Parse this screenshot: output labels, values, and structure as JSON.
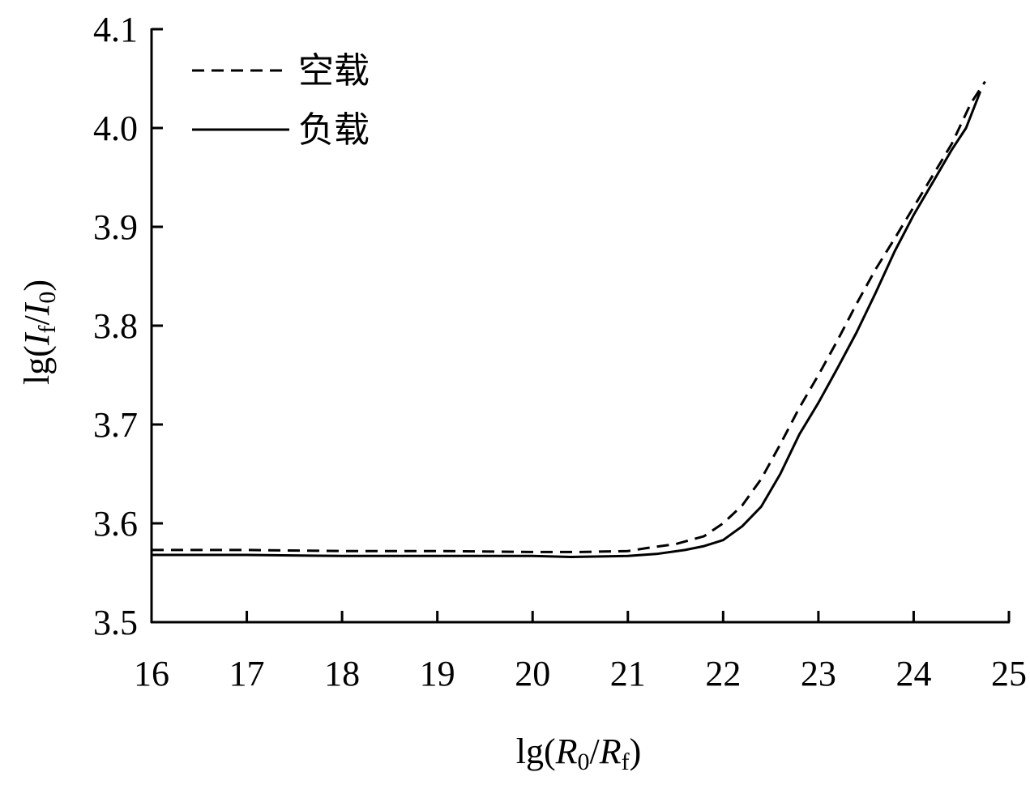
{
  "chart_data": {
    "type": "line",
    "title": "",
    "xlabel": {
      "prefix": "lg(",
      "num": "R",
      "num_sub": "0",
      "slash": "/",
      "den": "R",
      "den_sub": "f",
      "suffix": ")"
    },
    "ylabel": {
      "prefix": "lg(",
      "num": "I",
      "num_sub": "f",
      "slash": "/",
      "den": "I",
      "den_sub": "0",
      "suffix": ")"
    },
    "xlim": [
      16,
      25
    ],
    "ylim": [
      3.5,
      4.1
    ],
    "x_ticks": [
      "16",
      "17",
      "18",
      "19",
      "20",
      "21",
      "22",
      "23",
      "24",
      "25"
    ],
    "y_ticks": [
      "3.5",
      "3.6",
      "3.7",
      "3.8",
      "3.9",
      "4.0",
      "4.1"
    ],
    "grid": false,
    "legend_position": "top-left",
    "series": [
      {
        "name": "空载",
        "style": "dashed",
        "color": "#000000",
        "points": [
          [
            16.0,
            3.573
          ],
          [
            17.0,
            3.573
          ],
          [
            18.0,
            3.572
          ],
          [
            19.0,
            3.572
          ],
          [
            20.0,
            3.571
          ],
          [
            20.5,
            3.571
          ],
          [
            21.0,
            3.572
          ],
          [
            21.2,
            3.575
          ],
          [
            21.5,
            3.579
          ],
          [
            21.8,
            3.587
          ],
          [
            22.0,
            3.6
          ],
          [
            22.2,
            3.618
          ],
          [
            22.4,
            3.645
          ],
          [
            22.6,
            3.68
          ],
          [
            22.8,
            3.717
          ],
          [
            23.0,
            3.75
          ],
          [
            23.2,
            3.785
          ],
          [
            23.4,
            3.822
          ],
          [
            23.6,
            3.857
          ],
          [
            23.8,
            3.888
          ],
          [
            24.0,
            3.92
          ],
          [
            24.2,
            3.952
          ],
          [
            24.4,
            3.984
          ],
          [
            24.6,
            4.025
          ],
          [
            24.75,
            4.047
          ]
        ]
      },
      {
        "name": "负载",
        "style": "solid",
        "color": "#000000",
        "points": [
          [
            16.0,
            3.568
          ],
          [
            17.0,
            3.568
          ],
          [
            18.0,
            3.567
          ],
          [
            19.0,
            3.567
          ],
          [
            20.0,
            3.567
          ],
          [
            20.4,
            3.566
          ],
          [
            21.0,
            3.567
          ],
          [
            21.3,
            3.569
          ],
          [
            21.6,
            3.573
          ],
          [
            21.8,
            3.577
          ],
          [
            22.0,
            3.583
          ],
          [
            22.2,
            3.597
          ],
          [
            22.4,
            3.617
          ],
          [
            22.6,
            3.65
          ],
          [
            22.8,
            3.69
          ],
          [
            23.0,
            3.722
          ],
          [
            23.2,
            3.757
          ],
          [
            23.4,
            3.793
          ],
          [
            23.6,
            3.833
          ],
          [
            23.8,
            3.875
          ],
          [
            24.0,
            3.912
          ],
          [
            24.2,
            3.945
          ],
          [
            24.4,
            3.978
          ],
          [
            24.55,
            4.0
          ],
          [
            24.7,
            4.037
          ]
        ]
      }
    ]
  }
}
